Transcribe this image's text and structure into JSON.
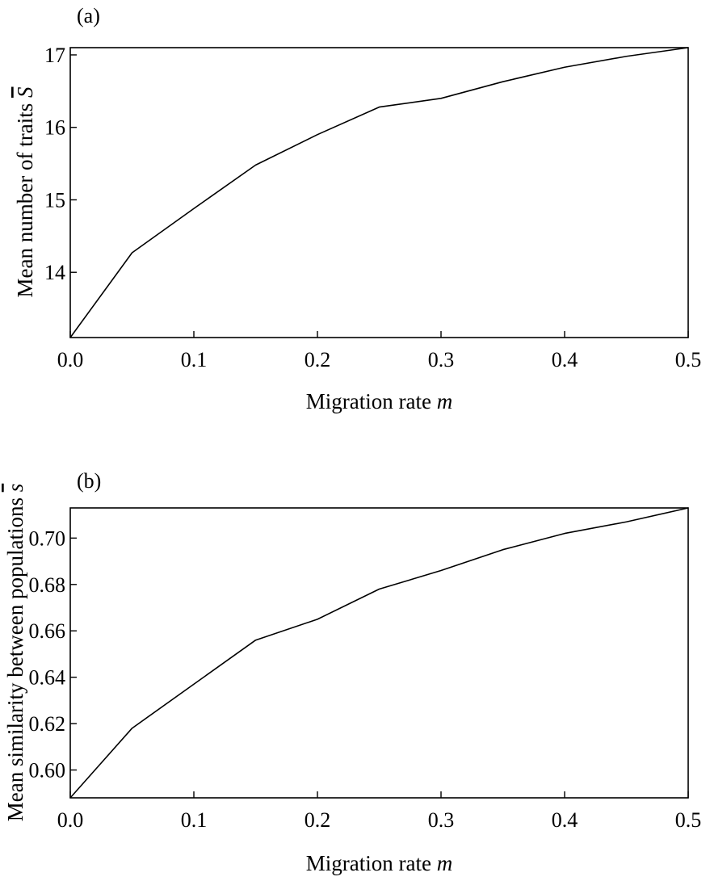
{
  "chart_data": [
    {
      "type": "line",
      "panel_label": "(a)",
      "xlabel": "Migration rate m",
      "ylabel": "Mean number of traits S̅",
      "xlim": [
        0,
        0.5
      ],
      "ylim": [
        13.1,
        17.1
      ],
      "xticks": [
        0.0,
        0.1,
        0.2,
        0.3,
        0.4,
        0.5
      ],
      "xtick_labels": [
        "0.0",
        "0.1",
        "0.2",
        "0.3",
        "0.4",
        "0.5"
      ],
      "yticks": [
        14,
        15,
        16,
        17
      ],
      "ytick_labels": [
        "14",
        "15",
        "16",
        "17"
      ],
      "grid": false,
      "series": [
        {
          "x": [
            0.0,
            0.05,
            0.1,
            0.15,
            0.2,
            0.25,
            0.3,
            0.35,
            0.4,
            0.45,
            0.5
          ],
          "y": [
            13.1,
            14.27,
            14.88,
            15.48,
            15.9,
            16.28,
            16.4,
            16.63,
            16.83,
            16.98,
            17.1
          ]
        }
      ]
    },
    {
      "type": "line",
      "panel_label": "(b)",
      "xlabel": "Migration rate m",
      "ylabel": "Mean similarity between populations s̅",
      "xlim": [
        0,
        0.5
      ],
      "ylim": [
        0.588,
        0.713
      ],
      "xticks": [
        0.0,
        0.1,
        0.2,
        0.3,
        0.4,
        0.5
      ],
      "xtick_labels": [
        "0.0",
        "0.1",
        "0.2",
        "0.3",
        "0.4",
        "0.5"
      ],
      "yticks": [
        0.6,
        0.62,
        0.64,
        0.66,
        0.68,
        0.7
      ],
      "ytick_labels": [
        "0.60",
        "0.62",
        "0.64",
        "0.66",
        "0.68",
        "0.70"
      ],
      "grid": false,
      "series": [
        {
          "x": [
            0.0,
            0.05,
            0.1,
            0.15,
            0.2,
            0.25,
            0.3,
            0.35,
            0.4,
            0.45,
            0.5
          ],
          "y": [
            0.588,
            0.618,
            0.637,
            0.656,
            0.665,
            0.678,
            0.686,
            0.695,
            0.702,
            0.707,
            0.713
          ]
        }
      ]
    }
  ]
}
